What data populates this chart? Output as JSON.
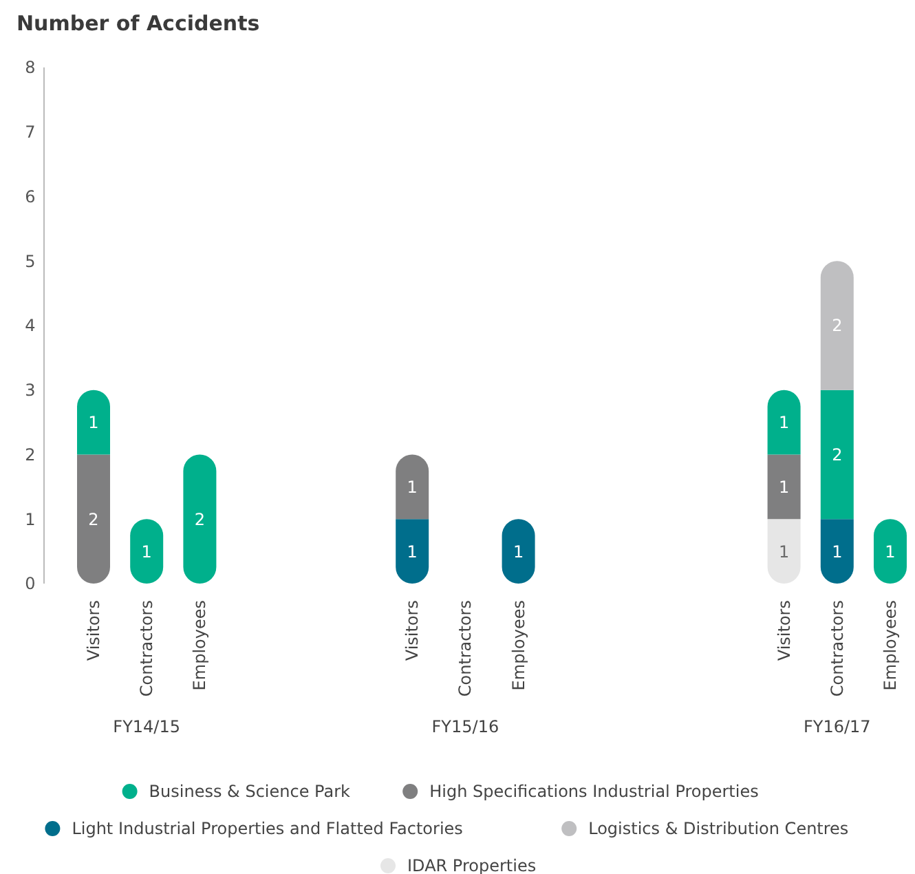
{
  "chart_data": {
    "type": "bar",
    "title": "Number of Accidents",
    "stacked": true,
    "data_labels": true,
    "legend": "bottom",
    "grid": false,
    "categories": [
      "Visitors",
      "Contractors",
      "Employees",
      null,
      null,
      null,
      "Visitors",
      "Contractors",
      "Employees",
      null,
      null,
      null,
      null,
      "Visitors",
      "Contractors",
      "Employees"
    ],
    "annotations": [
      "FY14/15",
      "FY15/16",
      "FY16/17"
    ],
    "ylim": [
      0,
      8
    ],
    "yticks": [
      0,
      1,
      2,
      3,
      4,
      5,
      6,
      7,
      8
    ],
    "series": [
      {
        "name": "IDAR Properties",
        "color": "#e6e6e6",
        "values": [
          null,
          null,
          null,
          null,
          null,
          null,
          null,
          null,
          null,
          null,
          null,
          null,
          null,
          1,
          null,
          null
        ]
      },
      {
        "name": "Light Industrial Properties and Flatted Factories",
        "color": "#006e8c",
        "values": [
          null,
          null,
          null,
          null,
          null,
          null,
          1,
          null,
          1,
          null,
          null,
          null,
          null,
          null,
          1,
          null
        ]
      },
      {
        "name": "High Specifications Industrial Properties",
        "color": "#7f7f80",
        "values": [
          2,
          null,
          null,
          null,
          null,
          null,
          1,
          null,
          null,
          null,
          null,
          null,
          null,
          1,
          null,
          null
        ]
      },
      {
        "name": "Business & Science Park",
        "color": "#00b08c",
        "values": [
          1,
          1,
          2,
          null,
          null,
          null,
          null,
          null,
          null,
          null,
          null,
          null,
          null,
          1,
          2,
          1
        ]
      },
      {
        "name": "Logistics & Distribution Centres",
        "color": "#bfbfc1",
        "values": [
          null,
          null,
          null,
          null,
          null,
          null,
          null,
          null,
          null,
          null,
          null,
          null,
          null,
          null,
          2,
          null
        ]
      }
    ]
  }
}
